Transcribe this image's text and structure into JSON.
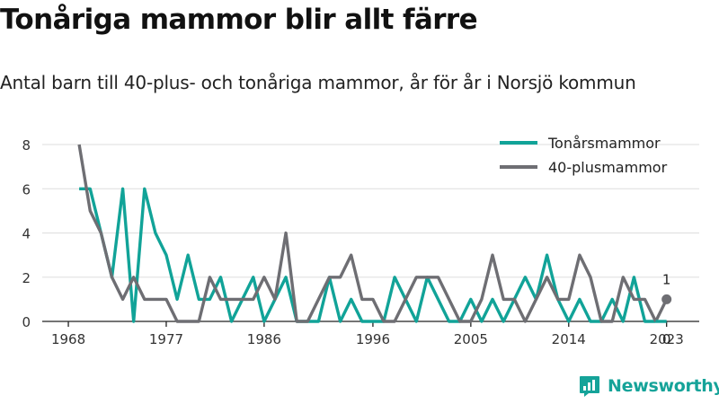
{
  "title": "Tonåriga mammor blir allt färre",
  "subtitle": "Antal barn till 40-plus- och tonåriga mammor, år för år i Norsjö kommun",
  "brand": "Newsworthy",
  "colors": {
    "teen": "#11a398",
    "plus40": "#6e6e73",
    "grid": "#dddddd",
    "brand": "#15a399"
  },
  "chart_data": {
    "type": "line",
    "ylim": [
      0,
      8
    ],
    "yticks": [
      0,
      2,
      4,
      6,
      8
    ],
    "xticks": [
      1968,
      1977,
      1986,
      1996,
      2005,
      2014,
      2023
    ],
    "xticklabels": [
      "1968",
      "1977",
      "1986",
      "1996",
      "2005",
      "2014",
      "2023"
    ],
    "grid": true,
    "legend": "top-right",
    "x": [
      1969,
      1970,
      1971,
      1972,
      1973,
      1974,
      1975,
      1976,
      1977,
      1978,
      1979,
      1980,
      1981,
      1982,
      1983,
      1984,
      1985,
      1986,
      1987,
      1988,
      1989,
      1990,
      1991,
      1992,
      1993,
      1994,
      1995,
      1996,
      1997,
      1998,
      1999,
      2000,
      2001,
      2002,
      2003,
      2004,
      2005,
      2006,
      2007,
      2008,
      2009,
      2010,
      2011,
      2012,
      2013,
      2014,
      2015,
      2016,
      2017,
      2018,
      2019,
      2020,
      2021,
      2022
    ],
    "series": [
      {
        "name": "Tonårsmammor",
        "key": "teen",
        "values": [
          6,
          6,
          4,
          2,
          6,
          0,
          6,
          4,
          3,
          1,
          3,
          1,
          1,
          2,
          0,
          1,
          2,
          0,
          1,
          2,
          0,
          0,
          0,
          2,
          0,
          1,
          0,
          0,
          0,
          2,
          1,
          0,
          2,
          1,
          0,
          0,
          1,
          0,
          1,
          0,
          1,
          2,
          1,
          3,
          1,
          0,
          1,
          0,
          0,
          1,
          0,
          2,
          0,
          0
        ]
      },
      {
        "name": "40-plusmammor",
        "key": "plus40",
        "values": [
          8,
          5,
          4,
          2,
          1,
          2,
          1,
          1,
          1,
          0,
          0,
          0,
          2,
          1,
          1,
          1,
          1,
          2,
          1,
          4,
          0,
          0,
          1,
          2,
          2,
          3,
          1,
          1,
          0,
          0,
          1,
          2,
          2,
          2,
          1,
          0,
          0,
          1,
          3,
          1,
          1,
          0,
          1,
          2,
          1,
          1,
          3,
          2,
          0,
          0,
          2,
          1,
          1,
          0
        ]
      }
    ],
    "annotations": [
      {
        "series": "plus40",
        "x": 2023,
        "y": 1,
        "label": "1"
      },
      {
        "series": "teen",
        "x": 2023,
        "y": 0,
        "label": "0"
      }
    ]
  }
}
